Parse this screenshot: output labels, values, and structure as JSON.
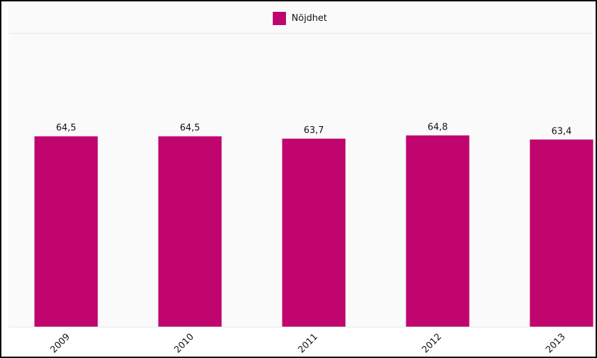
{
  "colors": {
    "series": "#c0066e",
    "grid_line": "#e6e6e6",
    "frame": "#000000",
    "plot_background": "#fafafa"
  },
  "chart_data": {
    "type": "bar",
    "categories": [
      "2009",
      "2010",
      "2011",
      "2012",
      "2013"
    ],
    "series": [
      {
        "name": "Nöjdhet",
        "values": [
          64.5,
          64.5,
          63.7,
          64.8,
          63.4
        ],
        "labels": [
          "64,5",
          "64,5",
          "63,7",
          "64,8",
          "63,4"
        ]
      }
    ],
    "title": "",
    "xlabel": "",
    "ylabel": "",
    "ylim": [
      0,
      100
    ],
    "grid": false,
    "legend": "top-center",
    "x_tick_rotation": "diagonal"
  }
}
